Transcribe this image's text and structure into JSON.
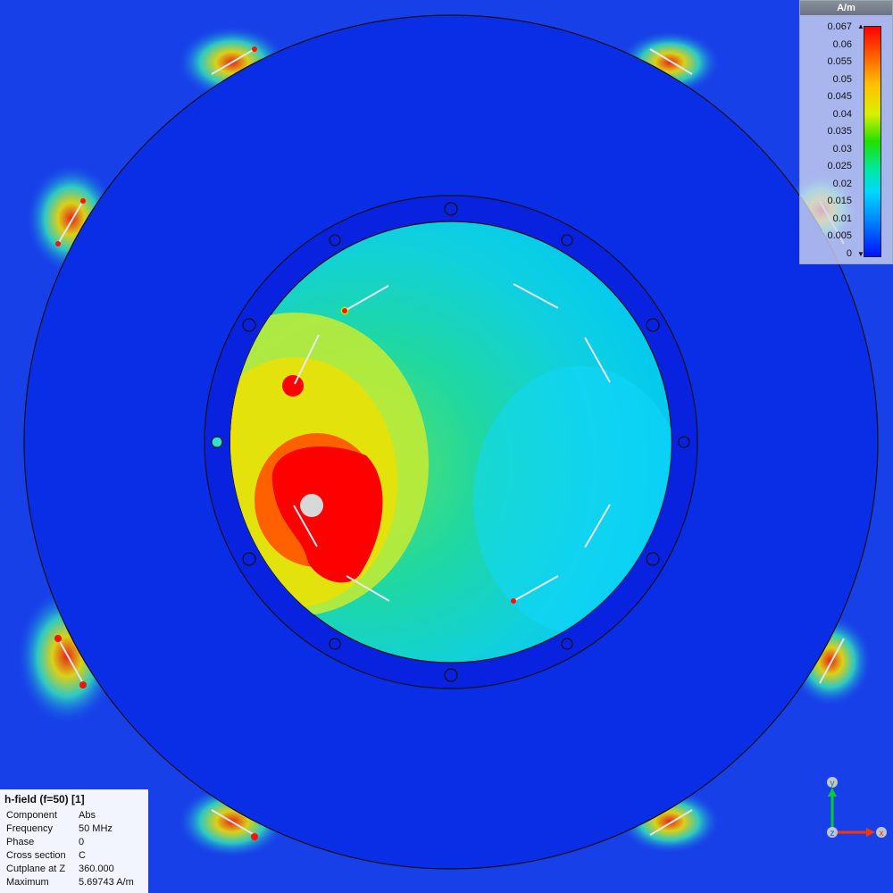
{
  "legend": {
    "unit": "A/m",
    "ticks": [
      "0.067",
      "0.06",
      "0.055",
      "0.05",
      "0.045",
      "0.04",
      "0.035",
      "0.03",
      "0.025",
      "0.02",
      "0.015",
      "0.01",
      "0.005",
      "0"
    ],
    "colors": [
      "#ff0000",
      "#ffc000",
      "#20e000",
      "#00d8ff",
      "#0010ff"
    ]
  },
  "info": {
    "title": "h-field (f=50) [1]",
    "rows": [
      {
        "key": "Component",
        "value": "Abs"
      },
      {
        "key": "Frequency",
        "value": "50 MHz"
      },
      {
        "key": "Phase",
        "value": "0"
      },
      {
        "key": "Cross section",
        "value": "C"
      },
      {
        "key": "Cutplane at Z",
        "value": "360.000"
      },
      {
        "key": "Maximum",
        "value": "5.69743 A/m"
      }
    ]
  },
  "axes": {
    "y": "y",
    "z": "z",
    "x": "x",
    "y_color": "#00cc33",
    "x_color": "#ff3300",
    "z_color": "#2255ff"
  }
}
